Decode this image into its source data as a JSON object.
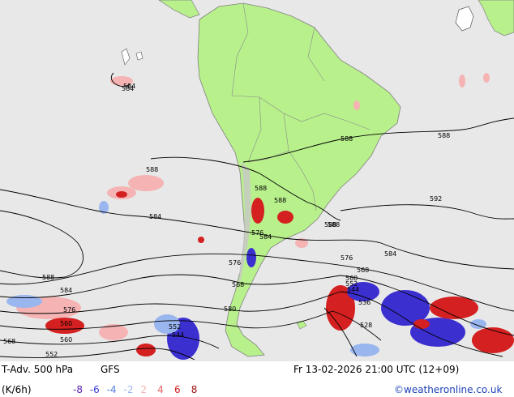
{
  "map": {
    "colors": {
      "ocean": "#e8e8e8",
      "land": "#b8f08c",
      "land_grey": "#c8c8c8",
      "border": "#808080",
      "contour": "#000000",
      "warm_strong": "#d42020",
      "warm_light": "#f5b3b3",
      "cold_strong": "#3c2fd0",
      "cold_light": "#9ab6ef"
    },
    "contour_labels": [
      "584",
      "588",
      "588",
      "588",
      "584",
      "592",
      "588",
      "588",
      "588",
      "584",
      "576",
      "584",
      "576",
      "588",
      "584",
      "576",
      "568",
      "580",
      "568",
      "560",
      "552",
      "544",
      "536",
      "528",
      "560",
      "552",
      "544",
      "552",
      "560",
      "568",
      "576",
      "584",
      "588"
    ]
  },
  "legend": {
    "title": "T-Adv. 500 hPa",
    "model": "GFS",
    "datetime": "Fr 13-02-2026 21:00 UTC (12+09)",
    "unit": "(K/6h)",
    "scale": [
      {
        "value": "-8",
        "color": "#5a1fb5"
      },
      {
        "value": "-6",
        "color": "#3a3fd5"
      },
      {
        "value": "-4",
        "color": "#5a7fe5"
      },
      {
        "value": "-2",
        "color": "#9ab6ef"
      },
      {
        "value": "2",
        "color": "#f5b3b3"
      },
      {
        "value": "4",
        "color": "#e86060"
      },
      {
        "value": "6",
        "color": "#d42020"
      },
      {
        "value": "8",
        "color": "#a01010"
      }
    ],
    "copyright": "©weatheronline.co.uk"
  }
}
